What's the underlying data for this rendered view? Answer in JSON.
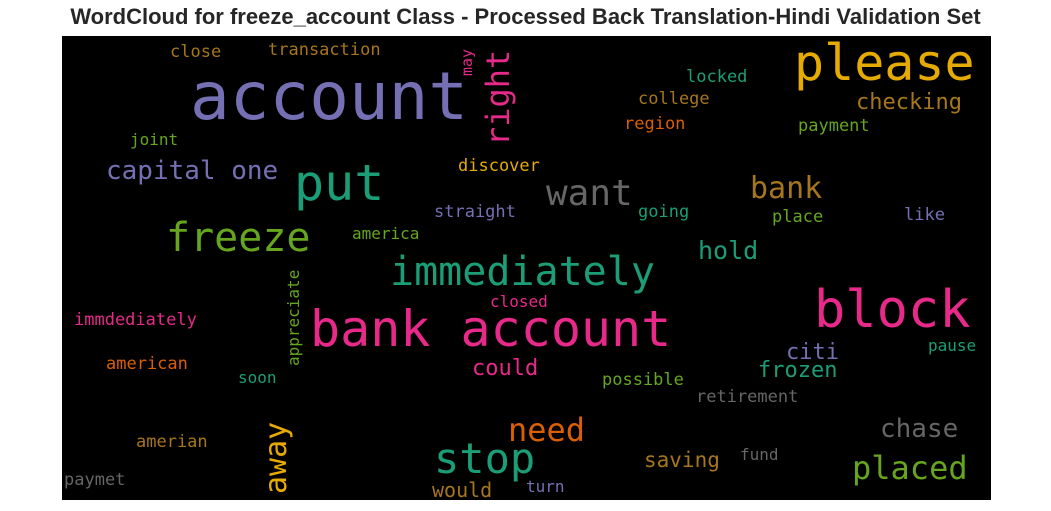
{
  "chart_data": {
    "type": "wordcloud",
    "title": "WordCloud for freeze_account Class - Processed Back Translation-Hindi Validation Set",
    "background": "#000000",
    "palette": [
      "#1b9e77",
      "#d95f02",
      "#7570b3",
      "#e7298a",
      "#66a61e",
      "#e6ab02",
      "#a6761d",
      "#666666"
    ],
    "words": [
      {
        "text": "account",
        "color": "#7570b3",
        "weight": 1.0
      },
      {
        "text": "please",
        "color": "#e6ab02",
        "weight": 0.72
      },
      {
        "text": "block",
        "color": "#e7298a",
        "weight": 0.72
      },
      {
        "text": "bank account",
        "color": "#e7298a",
        "weight": 0.68
      },
      {
        "text": "put",
        "color": "#1b9e77",
        "weight": 0.66
      },
      {
        "text": "immediately",
        "color": "#1b9e77",
        "weight": 0.55
      },
      {
        "text": "freeze",
        "color": "#66a61e",
        "weight": 0.55
      },
      {
        "text": "stop",
        "color": "#1b9e77",
        "weight": 0.55
      },
      {
        "text": "right",
        "color": "#e7298a",
        "weight": 0.47
      },
      {
        "text": "want",
        "color": "#666666",
        "weight": 0.47
      },
      {
        "text": "need",
        "color": "#d95f02",
        "weight": 0.42
      },
      {
        "text": "away",
        "color": "#e6ab02",
        "weight": 0.42
      },
      {
        "text": "placed",
        "color": "#66a61e",
        "weight": 0.42
      },
      {
        "text": "bank",
        "color": "#a6761d",
        "weight": 0.38
      },
      {
        "text": "capital one",
        "color": "#7570b3",
        "weight": 0.35
      },
      {
        "text": "chase",
        "color": "#666666",
        "weight": 0.35
      },
      {
        "text": "hold",
        "color": "#1b9e77",
        "weight": 0.33
      },
      {
        "text": "checking",
        "color": "#a6761d",
        "weight": 0.3
      },
      {
        "text": "citi",
        "color": "#7570b3",
        "weight": 0.3
      },
      {
        "text": "frozen",
        "color": "#1b9e77",
        "weight": 0.3
      },
      {
        "text": "could",
        "color": "#e7298a",
        "weight": 0.3
      },
      {
        "text": "saving",
        "color": "#a6761d",
        "weight": 0.3
      },
      {
        "text": "would",
        "color": "#a6761d",
        "weight": 0.28
      },
      {
        "text": "transaction",
        "color": "#a6761d",
        "weight": 0.25
      },
      {
        "text": "close",
        "color": "#a6761d",
        "weight": 0.24
      },
      {
        "text": "may",
        "color": "#e7298a",
        "weight": 0.22
      },
      {
        "text": "locked",
        "color": "#1b9e77",
        "weight": 0.24
      },
      {
        "text": "college",
        "color": "#a6761d",
        "weight": 0.24
      },
      {
        "text": "region",
        "color": "#d95f02",
        "weight": 0.24
      },
      {
        "text": "payment",
        "color": "#66a61e",
        "weight": 0.24
      },
      {
        "text": "joint",
        "color": "#66a61e",
        "weight": 0.23
      },
      {
        "text": "discover",
        "color": "#e6ab02",
        "weight": 0.24
      },
      {
        "text": "straight",
        "color": "#7570b3",
        "weight": 0.24
      },
      {
        "text": "going",
        "color": "#1b9e77",
        "weight": 0.24
      },
      {
        "text": "place",
        "color": "#66a61e",
        "weight": 0.24
      },
      {
        "text": "like",
        "color": "#7570b3",
        "weight": 0.24
      },
      {
        "text": "america",
        "color": "#66a61e",
        "weight": 0.23
      },
      {
        "text": "appreciate",
        "color": "#66a61e",
        "weight": 0.23
      },
      {
        "text": "closed",
        "color": "#e7298a",
        "weight": 0.23
      },
      {
        "text": "immdediately",
        "color": "#e7298a",
        "weight": 0.23
      },
      {
        "text": "pause",
        "color": "#1b9e77",
        "weight": 0.22
      },
      {
        "text": "american",
        "color": "#d95f02",
        "weight": 0.23
      },
      {
        "text": "soon",
        "color": "#1b9e77",
        "weight": 0.23
      },
      {
        "text": "possible",
        "color": "#66a61e",
        "weight": 0.23
      },
      {
        "text": "retirement",
        "color": "#666666",
        "weight": 0.23
      },
      {
        "text": "amerian",
        "color": "#a6761d",
        "weight": 0.23
      },
      {
        "text": "fund",
        "color": "#666666",
        "weight": 0.23
      },
      {
        "text": "paymet",
        "color": "#666666",
        "weight": 0.23
      },
      {
        "text": "turn",
        "color": "#7570b3",
        "weight": 0.22
      }
    ]
  }
}
